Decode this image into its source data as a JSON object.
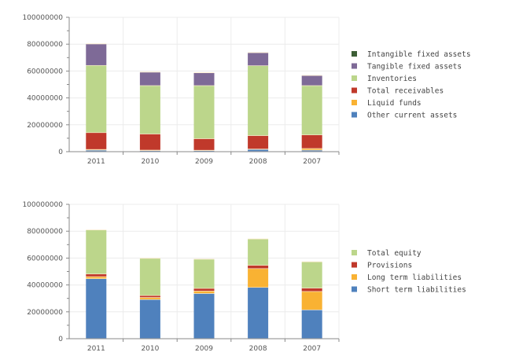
{
  "chart_data": [
    {
      "type": "bar",
      "stacked": true,
      "title": "",
      "xlabel": "",
      "ylabel": "",
      "ylim": [
        0,
        100000000
      ],
      "yticks": [
        "0",
        "20000000",
        "40000000",
        "60000000",
        "80000000",
        "100000000"
      ],
      "ytick_values": [
        0,
        20000000,
        40000000,
        60000000,
        80000000,
        100000000
      ],
      "grid": true,
      "legend_position": "right",
      "categories": [
        "2011",
        "2010",
        "2009",
        "2008",
        "2007"
      ],
      "series": [
        {
          "name": "Other current assets",
          "color": "#4f81bd",
          "values": [
            1000000,
            600000,
            600000,
            1500000,
            1000000
          ]
        },
        {
          "name": "Liquid funds",
          "color": "#f9b233",
          "values": [
            500000,
            400000,
            300000,
            300000,
            1200000
          ]
        },
        {
          "name": "Total receivables",
          "color": "#c0392b",
          "values": [
            12500000,
            12000000,
            8600000,
            10000000,
            10100000
          ]
        },
        {
          "name": "Inventories",
          "color": "#bcd68b",
          "values": [
            50000000,
            36000000,
            39500000,
            52000000,
            36700000
          ]
        },
        {
          "name": "Tangible fixed assets",
          "color": "#7e6a97",
          "values": [
            16000000,
            10000000,
            9500000,
            9700000,
            7500000
          ]
        },
        {
          "name": "Intangible fixed assets",
          "color": "#3d5e36",
          "values": [
            0,
            0,
            0,
            0,
            0
          ]
        }
      ],
      "legend_order": [
        "Intangible fixed assets",
        "Tangible fixed assets",
        "Inventories",
        "Total receivables",
        "Liquid funds",
        "Other current assets"
      ]
    },
    {
      "type": "bar",
      "stacked": true,
      "title": "",
      "xlabel": "",
      "ylabel": "",
      "ylim": [
        0,
        100000000
      ],
      "yticks": [
        "0",
        "20000000",
        "40000000",
        "60000000",
        "80000000",
        "100000000"
      ],
      "ytick_values": [
        0,
        20000000,
        40000000,
        60000000,
        80000000,
        100000000
      ],
      "grid": true,
      "legend_position": "right",
      "categories": [
        "2011",
        "2010",
        "2009",
        "2008",
        "2007"
      ],
      "series": [
        {
          "name": "Short term liabilities",
          "color": "#4f81bd",
          "values": [
            44500000,
            29000000,
            33500000,
            38000000,
            21300000
          ]
        },
        {
          "name": "Long term liabilities",
          "color": "#f9b233",
          "values": [
            1500000,
            1500000,
            1800000,
            14000000,
            13700000
          ]
        },
        {
          "name": "Provisions",
          "color": "#c0392b",
          "values": [
            2000000,
            1500000,
            2000000,
            2500000,
            2500000
          ]
        },
        {
          "name": "Total equity",
          "color": "#bcd68b",
          "values": [
            32700000,
            27600000,
            21700000,
            19500000,
            19500000
          ]
        }
      ],
      "legend_order": [
        "Total equity",
        "Provisions",
        "Long term liabilities",
        "Short term liabilities"
      ]
    }
  ]
}
